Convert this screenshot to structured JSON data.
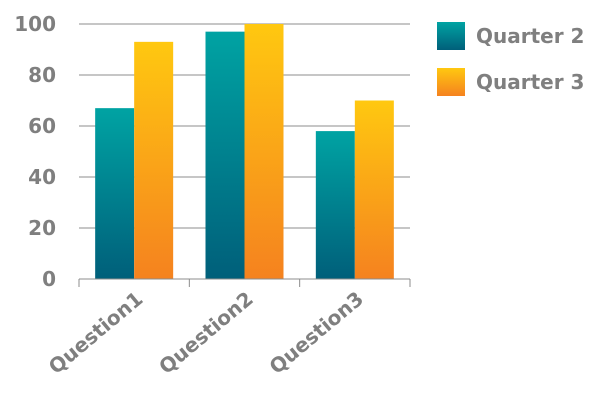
{
  "chart_data": {
    "type": "bar",
    "categories": [
      "Question1",
      "Question2",
      "Question3"
    ],
    "series": [
      {
        "name": "Quarter 2",
        "values": [
          67,
          97,
          58
        ],
        "color_top": "#00a3a3",
        "color_bottom": "#005f7a"
      },
      {
        "name": "Quarter 3",
        "values": [
          93,
          100,
          70
        ],
        "color_top": "#ffc810",
        "color_bottom": "#f5821f"
      }
    ],
    "ylim": [
      0,
      100
    ],
    "yticks": [
      "0",
      "20",
      "40",
      "60",
      "80",
      "100"
    ],
    "grid": true,
    "legend": "right",
    "title": "",
    "xlabel": "",
    "ylabel": ""
  }
}
